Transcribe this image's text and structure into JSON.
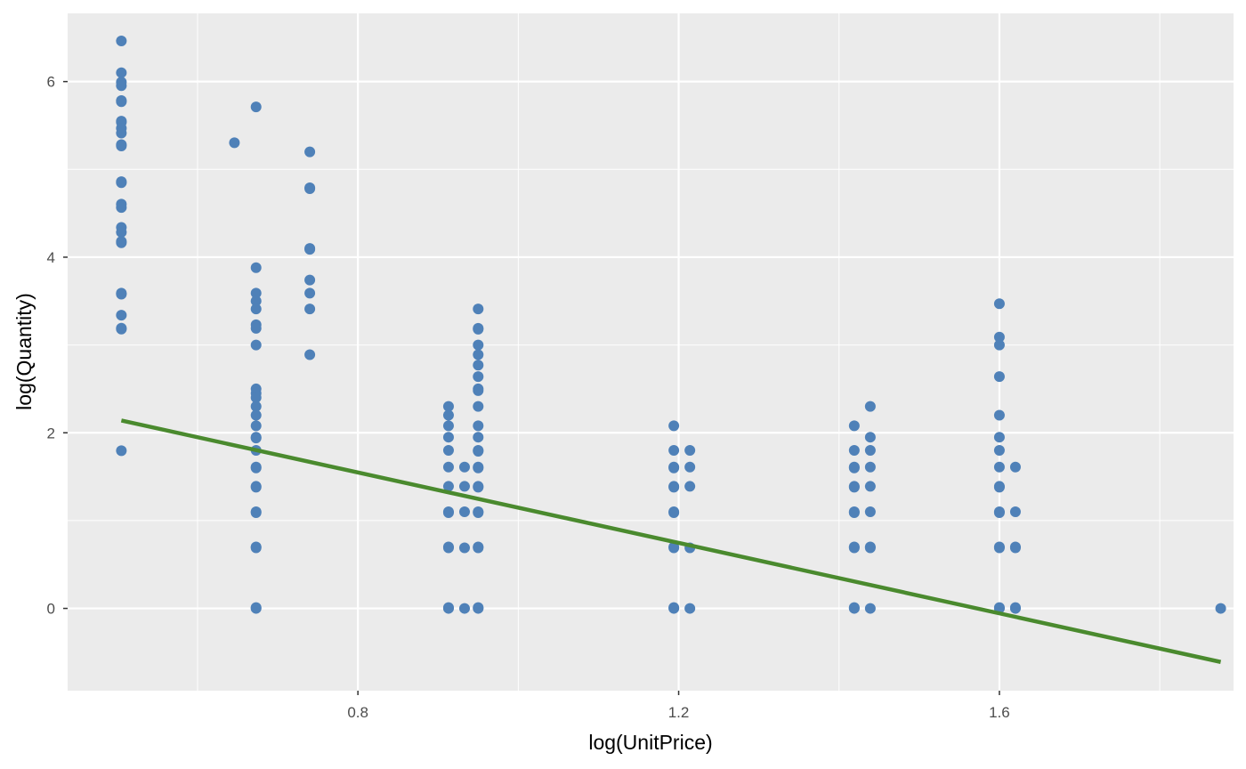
{
  "chart_data": {
    "type": "scatter",
    "title": "",
    "xlabel": "log(UnitPrice)",
    "ylabel": "log(Quantity)",
    "xlim": [
      0.438,
      1.892
    ],
    "ylim": [
      -0.937,
      6.777
    ],
    "x_ticks": [
      0.8,
      1.2,
      1.6
    ],
    "x_tick_labels": [
      "0.8",
      "1.2",
      "1.6"
    ],
    "y_ticks": [
      0,
      2,
      4,
      6
    ],
    "y_tick_labels": [
      "0",
      "2",
      "4",
      "6"
    ],
    "grid": true,
    "colors": {
      "panel": "#ebebeb",
      "grid_major": "#ffffff",
      "points": "#4f81b8",
      "fit_line": "#4a8a2e"
    },
    "series": [
      {
        "type": "scatter",
        "points": [
          [
            0.505,
            6.463
          ],
          [
            0.505,
            6.101
          ],
          [
            0.505,
            5.994
          ],
          [
            0.505,
            5.953
          ],
          [
            0.505,
            5.784
          ],
          [
            0.505,
            5.771
          ],
          [
            0.505,
            5.549
          ],
          [
            0.505,
            5.537
          ],
          [
            0.505,
            5.468
          ],
          [
            0.505,
            5.413
          ],
          [
            0.505,
            5.282
          ],
          [
            0.505,
            5.267
          ],
          [
            0.505,
            4.86
          ],
          [
            0.505,
            4.849
          ],
          [
            0.505,
            4.604
          ],
          [
            0.505,
            4.566
          ],
          [
            0.505,
            4.339
          ],
          [
            0.505,
            4.284
          ],
          [
            0.505,
            4.179
          ],
          [
            0.505,
            4.164
          ],
          [
            0.505,
            3.59
          ],
          [
            0.505,
            3.579
          ],
          [
            0.505,
            3.339
          ],
          [
            0.505,
            3.191
          ],
          [
            0.505,
            3.181
          ],
          [
            0.505,
            1.796
          ],
          [
            0.646,
            5.303
          ],
          [
            0.673,
            5.711
          ],
          [
            0.673,
            3.88
          ],
          [
            0.673,
            3.59
          ],
          [
            0.673,
            3.5
          ],
          [
            0.673,
            3.41
          ],
          [
            0.673,
            3.23
          ],
          [
            0.673,
            3.19
          ],
          [
            0.673,
            3.0
          ],
          [
            0.673,
            2.5
          ],
          [
            0.673,
            2.45
          ],
          [
            0.673,
            2.4
          ],
          [
            0.673,
            2.3
          ],
          [
            0.673,
            2.2
          ],
          [
            0.673,
            2.08
          ],
          [
            0.673,
            1.95
          ],
          [
            0.673,
            1.94
          ],
          [
            0.673,
            1.8
          ],
          [
            0.673,
            1.61
          ],
          [
            0.673,
            1.6
          ],
          [
            0.673,
            1.39
          ],
          [
            0.673,
            1.38
          ],
          [
            0.673,
            1.1
          ],
          [
            0.673,
            1.09
          ],
          [
            0.673,
            0.7
          ],
          [
            0.673,
            0.69
          ],
          [
            0.673,
            0.0
          ],
          [
            0.673,
            0.01
          ],
          [
            0.74,
            5.2
          ],
          [
            0.74,
            4.79
          ],
          [
            0.74,
            4.78
          ],
          [
            0.74,
            4.1
          ],
          [
            0.74,
            4.09
          ],
          [
            0.74,
            3.74
          ],
          [
            0.74,
            3.59
          ],
          [
            0.74,
            3.41
          ],
          [
            0.74,
            2.89
          ],
          [
            0.913,
            2.3
          ],
          [
            0.913,
            2.2
          ],
          [
            0.913,
            2.08
          ],
          [
            0.913,
            1.95
          ],
          [
            0.913,
            1.8
          ],
          [
            0.913,
            1.61
          ],
          [
            0.913,
            1.39
          ],
          [
            0.913,
            1.1
          ],
          [
            0.913,
            1.09
          ],
          [
            0.913,
            0.7
          ],
          [
            0.913,
            0.69
          ],
          [
            0.913,
            0.0
          ],
          [
            0.913,
            0.01
          ],
          [
            0.933,
            1.61
          ],
          [
            0.933,
            1.39
          ],
          [
            0.933,
            1.1
          ],
          [
            0.933,
            0.69
          ],
          [
            0.933,
            0.0
          ],
          [
            0.95,
            3.41
          ],
          [
            0.95,
            3.19
          ],
          [
            0.95,
            3.18
          ],
          [
            0.95,
            3.0
          ],
          [
            0.95,
            2.89
          ],
          [
            0.95,
            2.77
          ],
          [
            0.95,
            2.64
          ],
          [
            0.95,
            2.5
          ],
          [
            0.95,
            2.48
          ],
          [
            0.95,
            2.3
          ],
          [
            0.95,
            2.08
          ],
          [
            0.95,
            1.95
          ],
          [
            0.95,
            1.8
          ],
          [
            0.95,
            1.79
          ],
          [
            0.95,
            1.61
          ],
          [
            0.95,
            1.6
          ],
          [
            0.95,
            1.39
          ],
          [
            0.95,
            1.38
          ],
          [
            0.95,
            1.1
          ],
          [
            0.95,
            1.09
          ],
          [
            0.95,
            0.7
          ],
          [
            0.95,
            0.69
          ],
          [
            0.95,
            0.0
          ],
          [
            0.95,
            0.01
          ],
          [
            1.194,
            2.08
          ],
          [
            1.194,
            1.8
          ],
          [
            1.194,
            1.61
          ],
          [
            1.194,
            1.6
          ],
          [
            1.194,
            1.39
          ],
          [
            1.194,
            1.38
          ],
          [
            1.194,
            1.1
          ],
          [
            1.194,
            1.09
          ],
          [
            1.194,
            0.7
          ],
          [
            1.194,
            0.69
          ],
          [
            1.194,
            0.0
          ],
          [
            1.194,
            0.01
          ],
          [
            1.214,
            1.8
          ],
          [
            1.214,
            1.61
          ],
          [
            1.214,
            1.39
          ],
          [
            1.214,
            0.69
          ],
          [
            1.214,
            0.0
          ],
          [
            1.419,
            2.08
          ],
          [
            1.419,
            1.8
          ],
          [
            1.419,
            1.61
          ],
          [
            1.419,
            1.6
          ],
          [
            1.419,
            1.39
          ],
          [
            1.419,
            1.38
          ],
          [
            1.419,
            1.1
          ],
          [
            1.419,
            1.09
          ],
          [
            1.419,
            0.7
          ],
          [
            1.419,
            0.69
          ],
          [
            1.419,
            0.0
          ],
          [
            1.419,
            0.01
          ],
          [
            1.439,
            2.3
          ],
          [
            1.439,
            1.95
          ],
          [
            1.439,
            1.8
          ],
          [
            1.439,
            1.61
          ],
          [
            1.439,
            1.39
          ],
          [
            1.439,
            1.1
          ],
          [
            1.439,
            0.7
          ],
          [
            1.439,
            0.69
          ],
          [
            1.439,
            0.0
          ],
          [
            1.6,
            3.47
          ],
          [
            1.6,
            3.09
          ],
          [
            1.6,
            3.0
          ],
          [
            1.6,
            2.64
          ],
          [
            1.6,
            2.2
          ],
          [
            1.6,
            1.95
          ],
          [
            1.6,
            1.8
          ],
          [
            1.6,
            1.61
          ],
          [
            1.6,
            1.39
          ],
          [
            1.6,
            1.38
          ],
          [
            1.6,
            1.1
          ],
          [
            1.6,
            1.09
          ],
          [
            1.6,
            0.7
          ],
          [
            1.6,
            0.69
          ],
          [
            1.6,
            0.0
          ],
          [
            1.6,
            0.01
          ],
          [
            1.62,
            1.61
          ],
          [
            1.62,
            1.1
          ],
          [
            1.62,
            0.7
          ],
          [
            1.62,
            0.69
          ],
          [
            1.62,
            0.0
          ],
          [
            1.62,
            0.01
          ],
          [
            1.876,
            0.0
          ]
        ]
      },
      {
        "type": "line",
        "points": [
          [
            0.505,
            2.14
          ],
          [
            1.876,
            -0.61
          ]
        ]
      }
    ]
  }
}
